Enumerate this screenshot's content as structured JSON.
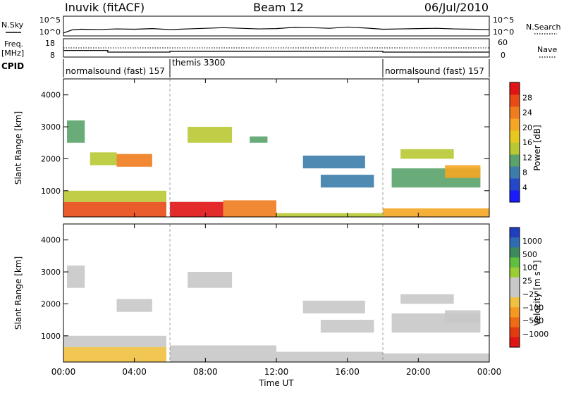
{
  "header": {
    "title": "Inuvik (fitACF)",
    "beam": "Beam 12",
    "date": "06/Jul/2010"
  },
  "top_panels": {
    "nsky_label": "N.Sky",
    "nsearch_label": "N.Search",
    "nsky_ticks": [
      "10^5",
      "10^0"
    ],
    "freq_label": "Freq.",
    "freq_unit": "[MHz]",
    "freq_ticks": [
      "18",
      "8"
    ],
    "nave_label": "Nave",
    "nave_ticks": [
      "60",
      "0"
    ],
    "cpid_label": "CPID",
    "cpid_segments": [
      {
        "name": "normalsound (fast) 157",
        "start_hour": 0,
        "end_hour": 6
      },
      {
        "name": "themis 3300",
        "start_hour": 6,
        "end_hour": 18
      },
      {
        "name": "normalsound (fast) 157",
        "start_hour": 18,
        "end_hour": 24
      }
    ]
  },
  "axes": {
    "ylabel": "Slant Range [km]",
    "xlabel": "Time UT",
    "y_ticks": [
      "1000",
      "2000",
      "3000",
      "4000"
    ],
    "x_ticks": [
      "00:00",
      "04:00",
      "08:00",
      "12:00",
      "16:00",
      "20:00",
      "00:00"
    ]
  },
  "power_colorbar": {
    "label": "Power [dB]",
    "ticks": [
      "4",
      "8",
      "12",
      "16",
      "20",
      "24",
      "28"
    ],
    "colors": [
      "#1a1aff",
      "#2448c8",
      "#3c7dab",
      "#5aa36a",
      "#b8c833",
      "#e8c81e",
      "#f5a623",
      "#f07c1e",
      "#e84a14",
      "#e01414"
    ]
  },
  "velocity_colorbar": {
    "label": "Velocity [m s⁻¹]",
    "ticks": [
      "1000",
      "500",
      "100",
      "25",
      "−25",
      "−100",
      "−500",
      "−1000"
    ],
    "colors": [
      "#1f3fbf",
      "#2e6bb0",
      "#3d8a5e",
      "#5fbf3f",
      "#9acd32",
      "#c8c8c8",
      "#c8c8c8",
      "#f0c040",
      "#f59a20",
      "#ef6a14",
      "#e03c10",
      "#e01414"
    ]
  },
  "chart_data": [
    {
      "type": "line",
      "title": "N.Sky / N.Search",
      "x": [
        0,
        0.5,
        1,
        2,
        3,
        4,
        5,
        6,
        7,
        8,
        9,
        10,
        11,
        12,
        13,
        14,
        15,
        16,
        17,
        18,
        19,
        20,
        21,
        22,
        23,
        24
      ],
      "series": [
        {
          "name": "N.Sky",
          "values": [
            0.5,
            1.5,
            1.7,
            1.6,
            1.8,
            1.7,
            1.9,
            1.6,
            1.8,
            2.0,
            2.2,
            2.0,
            1.8,
            1.9,
            2.3,
            2.2,
            2.0,
            2.4,
            2.1,
            1.7,
            1.8,
            1.9,
            2.0,
            1.8,
            1.7,
            1.6
          ]
        }
      ],
      "ylim": [
        0,
        5
      ],
      "ylabel": "N.Sky"
    },
    {
      "type": "line",
      "title": "Freq. / Nave",
      "x": [
        0,
        2.5,
        2.5,
        6,
        6,
        18,
        18,
        24
      ],
      "series": [
        {
          "name": "Freq.",
          "values": [
            11.5,
            11.5,
            10.5,
            10.5,
            11.0,
            11.0,
            10.5,
            10.5
          ]
        }
      ],
      "ylim": [
        8,
        18
      ],
      "ylabel": "[MHz]"
    },
    {
      "type": "heatmap",
      "title": "Power [dB]",
      "xlabel": "Time UT",
      "ylabel": "Slant Range [km]",
      "xlim": [
        0,
        24
      ],
      "ylim": [
        180,
        4500
      ],
      "zlim": [
        0,
        30
      ],
      "blocks": [
        {
          "t": [
            0,
            5.8
          ],
          "r": [
            180,
            650
          ],
          "value": 26
        },
        {
          "t": [
            0,
            5.8
          ],
          "r": [
            650,
            1000
          ],
          "value": 14
        },
        {
          "t": [
            0.2,
            1.2
          ],
          "r": [
            2500,
            3200
          ],
          "value": 10
        },
        {
          "t": [
            1.5,
            3.0
          ],
          "r": [
            1800,
            2200
          ],
          "value": 14
        },
        {
          "t": [
            3.0,
            5.0
          ],
          "r": [
            1750,
            2150
          ],
          "value": 22
        },
        {
          "t": [
            6.0,
            9.0
          ],
          "r": [
            180,
            650
          ],
          "value": 28
        },
        {
          "t": [
            9.0,
            12.0
          ],
          "r": [
            180,
            700
          ],
          "value": 22
        },
        {
          "t": [
            7.0,
            9.5
          ],
          "r": [
            2500,
            3000
          ],
          "value": 12
        },
        {
          "t": [
            10.5,
            11.5
          ],
          "r": [
            2500,
            2700
          ],
          "value": 10
        },
        {
          "t": [
            12.0,
            18.0
          ],
          "r": [
            180,
            300
          ],
          "value": 12
        },
        {
          "t": [
            13.5,
            17.0
          ],
          "r": [
            1700,
            2100
          ],
          "value": 8
        },
        {
          "t": [
            14.5,
            17.5
          ],
          "r": [
            1100,
            1500
          ],
          "value": 8
        },
        {
          "t": [
            18.0,
            24.0
          ],
          "r": [
            180,
            450
          ],
          "value": 18
        },
        {
          "t": [
            18.5,
            23.5
          ],
          "r": [
            1100,
            1700
          ],
          "value": 10
        },
        {
          "t": [
            21.5,
            23.5
          ],
          "r": [
            1400,
            1800
          ],
          "value": 20
        },
        {
          "t": [
            19.0,
            22.0
          ],
          "r": [
            2000,
            2300
          ],
          "value": 12
        }
      ]
    },
    {
      "type": "heatmap",
      "title": "Velocity [m s⁻¹]",
      "xlabel": "Time UT",
      "ylabel": "Slant Range [km]",
      "xlim": [
        0,
        24
      ],
      "ylim": [
        180,
        4500
      ],
      "zlim": [
        -1000,
        1000
      ],
      "blocks": [
        {
          "t": [
            0,
            5.8
          ],
          "r": [
            180,
            650
          ],
          "value": -300
        },
        {
          "t": [
            0,
            5.8
          ],
          "r": [
            650,
            1000
          ],
          "value": -150
        },
        {
          "t": [
            0.2,
            1.2
          ],
          "r": [
            2500,
            3200
          ],
          "value": 40
        },
        {
          "t": [
            3.0,
            5.0
          ],
          "r": [
            1750,
            2150
          ],
          "value": -80
        },
        {
          "t": [
            6.0,
            12.0
          ],
          "r": [
            180,
            400
          ],
          "value": 60
        },
        {
          "t": [
            6.0,
            12.0
          ],
          "r": [
            400,
            700
          ],
          "value": 0
        },
        {
          "t": [
            7.0,
            9.5
          ],
          "r": [
            2500,
            3000
          ],
          "value": 0
        },
        {
          "t": [
            12.0,
            18.0
          ],
          "r": [
            180,
            500
          ],
          "value": -80
        },
        {
          "t": [
            13.5,
            17.0
          ],
          "r": [
            1700,
            2100
          ],
          "value": 0
        },
        {
          "t": [
            14.5,
            17.5
          ],
          "r": [
            1100,
            1500
          ],
          "value": -120
        },
        {
          "t": [
            18.0,
            24.0
          ],
          "r": [
            180,
            450
          ],
          "value": 80
        },
        {
          "t": [
            18.5,
            23.5
          ],
          "r": [
            1100,
            1700
          ],
          "value": 0
        },
        {
          "t": [
            21.5,
            23.5
          ],
          "r": [
            1400,
            1800
          ],
          "value": 0
        },
        {
          "t": [
            19.0,
            22.0
          ],
          "r": [
            2000,
            2300
          ],
          "value": 0
        }
      ]
    }
  ]
}
